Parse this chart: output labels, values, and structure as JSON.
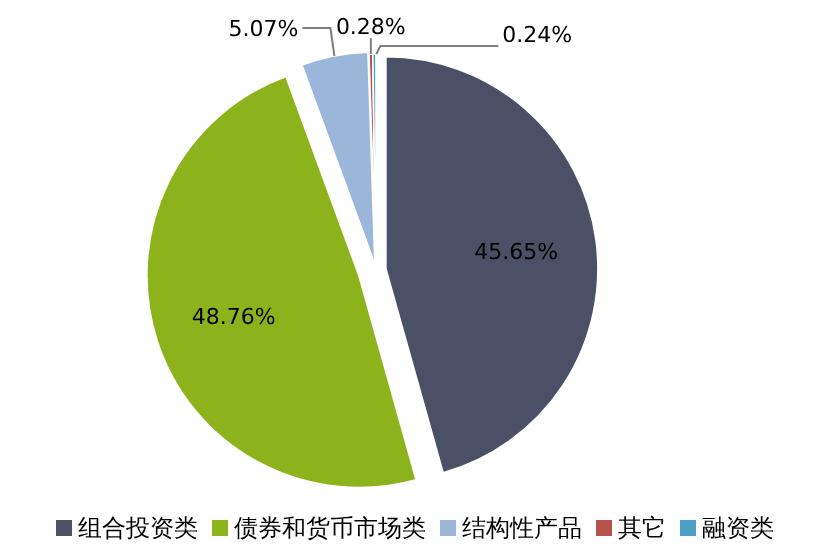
{
  "chart_data": {
    "type": "pie",
    "categories": [
      "组合投资类",
      "债券和货币市场类",
      "结构性产品",
      "其它",
      "融资类"
    ],
    "values": [
      45.65,
      48.76,
      5.07,
      0.28,
      0.24
    ],
    "value_labels": [
      "45.65%",
      "48.76%",
      "5.07%",
      "0.28%",
      "0.24%"
    ],
    "colors": [
      "#4a5066",
      "#8db31c",
      "#9ab6d9",
      "#b5524a",
      "#4aa3c4"
    ],
    "legend": "bottom"
  }
}
